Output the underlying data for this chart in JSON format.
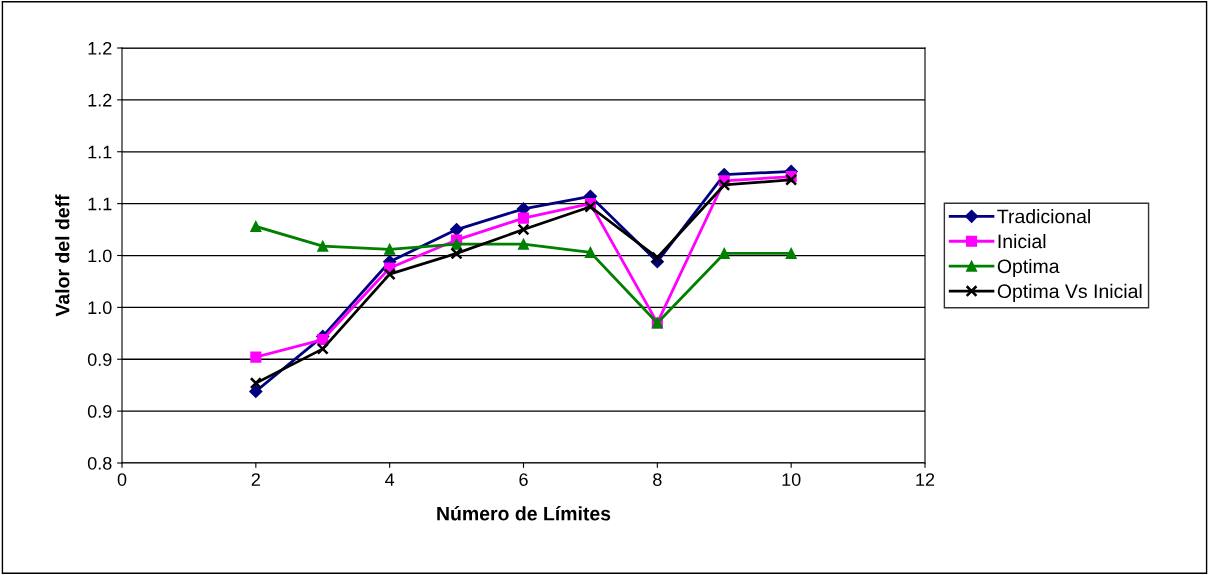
{
  "chart_data": {
    "type": "line",
    "xlabel": "Número de Límites",
    "ylabel": "Valor del deff",
    "x": [
      2,
      3,
      4,
      5,
      6,
      7,
      8,
      9,
      10
    ],
    "series": [
      {
        "name": "Tradicional",
        "color": "#000080",
        "marker": "diamond",
        "values": [
          0.869,
          0.922,
          0.994,
          1.025,
          1.045,
          1.057,
          0.994,
          1.078,
          1.081
        ]
      },
      {
        "name": "Inicial",
        "color": "#ff00ff",
        "marker": "square",
        "values": [
          0.902,
          0.919,
          0.988,
          1.015,
          1.036,
          1.05,
          0.935,
          1.072,
          1.076
        ]
      },
      {
        "name": "Optima",
        "color": "#008000",
        "marker": "triangle",
        "values": [
          1.028,
          1.009,
          1.006,
          1.011,
          1.011,
          1.003,
          0.935,
          1.002,
          1.002
        ]
      },
      {
        "name": "Optima Vs Inicial",
        "color": "#000000",
        "marker": "cross",
        "values": [
          0.877,
          0.91,
          0.982,
          1.002,
          1.025,
          1.047,
          0.998,
          1.068,
          1.073
        ]
      }
    ],
    "xlim": [
      0,
      12
    ],
    "xticks": [
      0,
      2,
      4,
      6,
      8,
      10,
      12
    ],
    "ylim": [
      0.8,
      1.2
    ],
    "yticks": [
      {
        "value": 0.8,
        "label": "0.8"
      },
      {
        "value": 0.85,
        "label": "0.9"
      },
      {
        "value": 0.9,
        "label": "0.9"
      },
      {
        "value": 0.95,
        "label": "1.0"
      },
      {
        "value": 1.0,
        "label": "1.0"
      },
      {
        "value": 1.05,
        "label": "1.1"
      },
      {
        "value": 1.1,
        "label": "1.1"
      },
      {
        "value": 1.15,
        "label": "1.2"
      },
      {
        "value": 1.2,
        "label": "1.2"
      }
    ],
    "grid": "y",
    "legend": "right",
    "line_style": "solid"
  }
}
